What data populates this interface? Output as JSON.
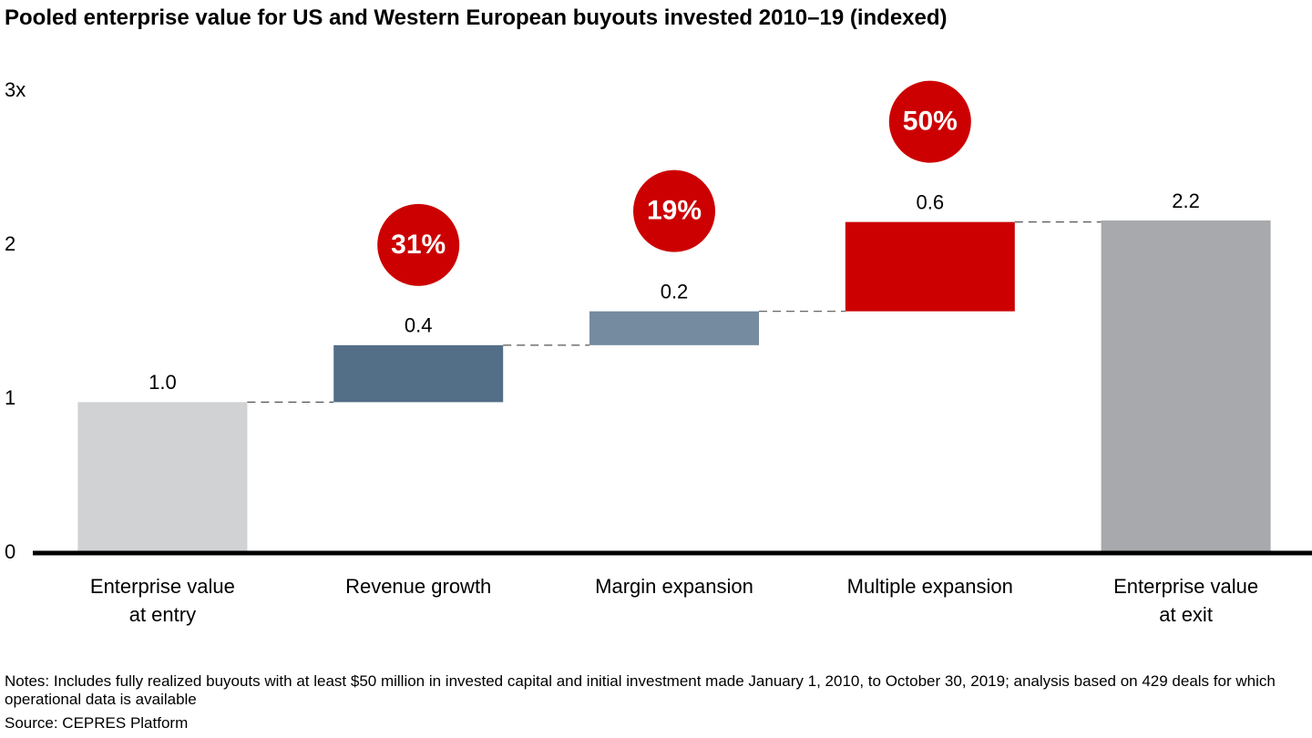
{
  "chart_data": {
    "type": "waterfall",
    "title": "Pooled enterprise value for US and Western European buyouts invested 2010–19 (indexed)",
    "categories": [
      "Enterprise value\nat entry",
      "Revenue growth",
      "Margin expansion",
      "Multiple expansion",
      "Enterprise value\nat exit"
    ],
    "measures": [
      "absolute",
      "relative",
      "relative",
      "relative",
      "total"
    ],
    "values": [
      0.98,
      0.37,
      0.22,
      0.58,
      2.16
    ],
    "value_labels": [
      "1.0",
      "0.4",
      "0.2",
      "0.6",
      "2.2"
    ],
    "colors": [
      "#d1d2d4",
      "#536e87",
      "#748ba0",
      "#cc0000",
      "#a7a9ac"
    ],
    "annotations": [
      null,
      "31%",
      "19%",
      "50%",
      null
    ],
    "annotation_color": "#cc0000",
    "ylim": [
      0,
      3
    ],
    "yticks": [
      0,
      1,
      2,
      {
        "value": 3,
        "label": "3x"
      }
    ],
    "grid": false,
    "notes": "Notes: Includes fully realized buyouts with at least $50 million in invested capital and initial investment made January 1, 2010, to October 30, 2019; analysis based on 429 deals for which operational data is available",
    "source": "Source: CEPRES Platform"
  }
}
